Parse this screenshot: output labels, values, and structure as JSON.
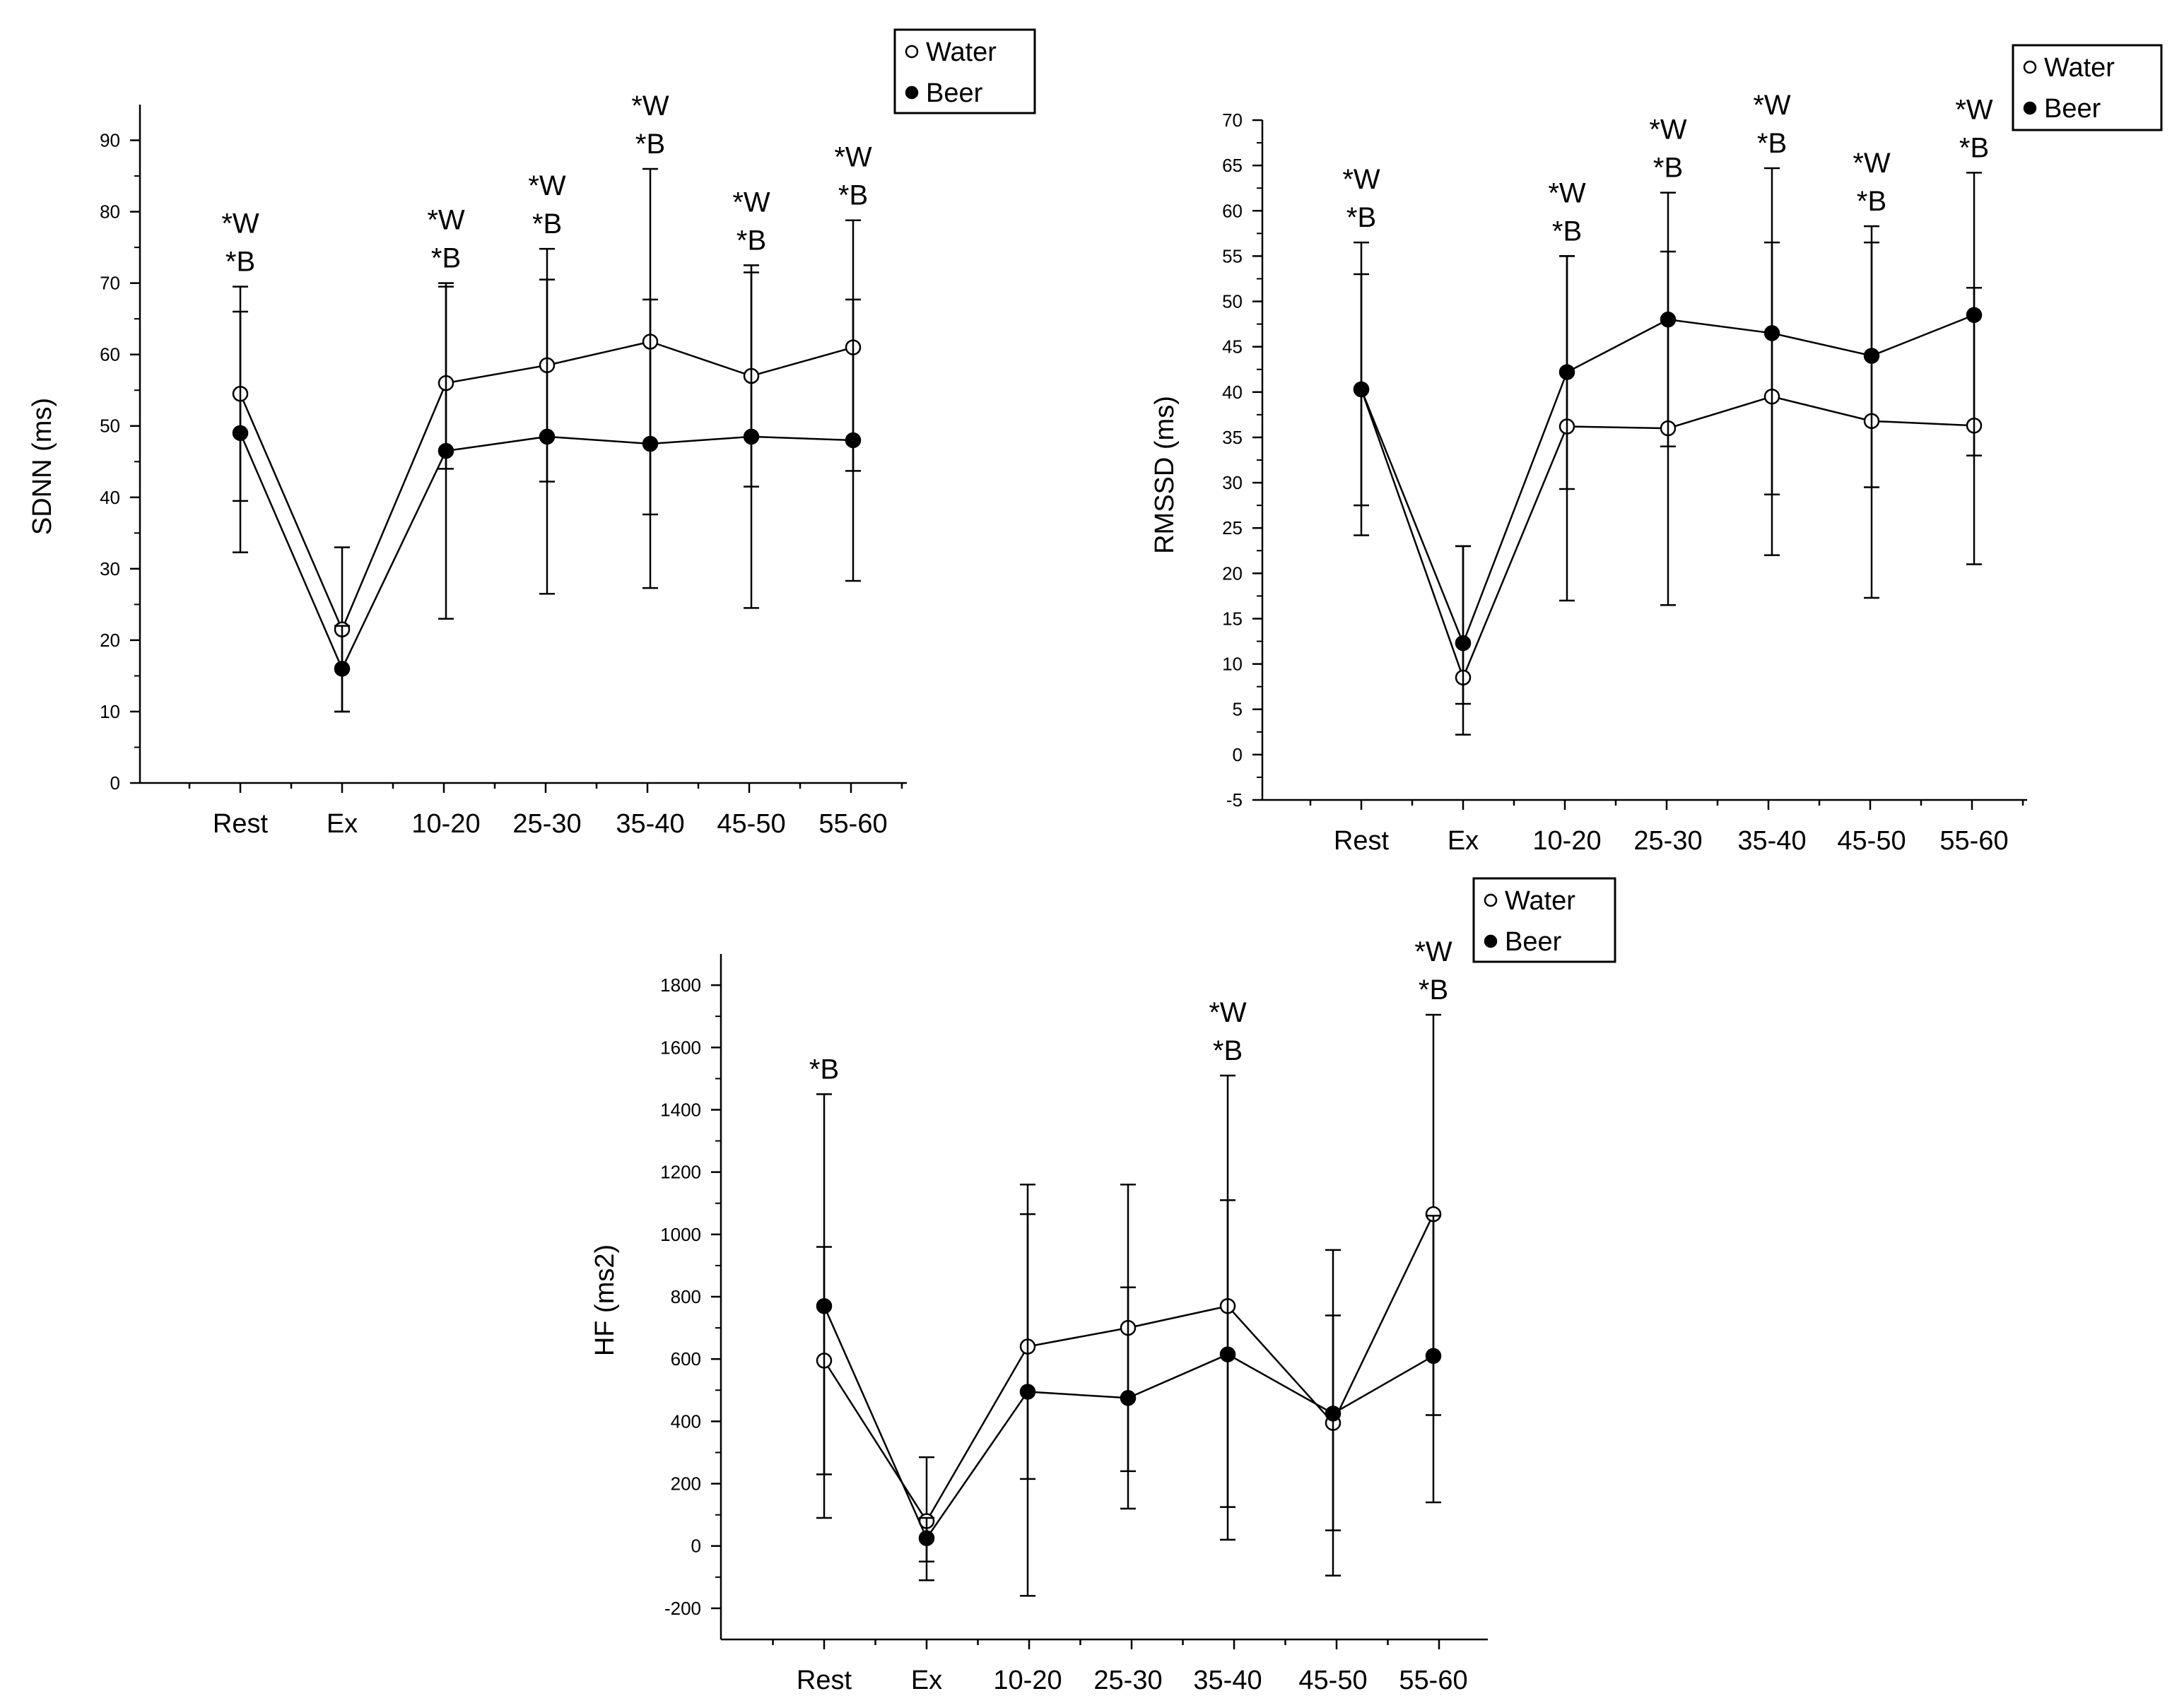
{
  "chart_data": [
    {
      "type": "line",
      "ylabel": "SDNN (ms)",
      "xlabel": "",
      "ylim": [
        0,
        95
      ],
      "yticks": [
        0,
        10,
        20,
        30,
        40,
        50,
        60,
        70,
        80,
        90
      ],
      "categories": [
        "Rest",
        "Ex",
        "10-20",
        "25-30",
        "35-40",
        "45-50",
        "55-60"
      ],
      "series": [
        {
          "name": "Water",
          "marker": "open",
          "values": [
            54.5,
            21.5,
            56,
            58.5,
            61.8,
            57,
            61
          ],
          "upper": [
            69.5,
            33,
            70,
            74.8,
            86,
            72.5,
            78.8
          ],
          "lower": [
            39.5,
            10,
            44,
            42.2,
            37.6,
            41.5,
            43.7
          ]
        },
        {
          "name": "Beer",
          "marker": "filled",
          "values": [
            49,
            16,
            46.5,
            48.5,
            47.5,
            48.5,
            48
          ],
          "upper": [
            66,
            22,
            69.5,
            70.5,
            67.7,
            71.5,
            67.7
          ],
          "lower": [
            32.3,
            10,
            23,
            26.5,
            27.3,
            24.5,
            28.3
          ]
        }
      ],
      "annotations": [
        "*W\n*B",
        "",
        "*W\n*B",
        "*W\n*B",
        "*W\n*B",
        "*W\n*B",
        "*W\n*B"
      ],
      "legend_position": "top-right"
    },
    {
      "type": "line",
      "ylabel": "RMSSD (ms)",
      "xlabel": "",
      "ylim": [
        -5,
        70
      ],
      "yticks": [
        -5,
        0,
        5,
        10,
        15,
        20,
        25,
        30,
        35,
        40,
        45,
        50,
        55,
        60,
        65,
        70
      ],
      "categories": [
        "Rest",
        "Ex",
        "10-20",
        "25-30",
        "35-40",
        "45-50",
        "55-60"
      ],
      "series": [
        {
          "name": "Water",
          "marker": "open",
          "values": [
            40.3,
            8.5,
            36.2,
            36,
            39.5,
            36.8,
            36.3
          ],
          "upper": [
            56.5,
            23,
            55,
            55.5,
            56.5,
            56.5,
            51.5
          ],
          "lower": [
            24.2,
            5.6,
            17,
            16.5,
            22,
            17.3,
            21
          ]
        },
        {
          "name": "Beer",
          "marker": "filled",
          "values": [
            40.3,
            12.3,
            42.2,
            48,
            46.5,
            44,
            48.5
          ],
          "upper": [
            53,
            23,
            55,
            62,
            64.7,
            58.3,
            64.2
          ],
          "lower": [
            27.5,
            2.2,
            29.3,
            34,
            28.7,
            29.5,
            33
          ]
        }
      ],
      "annotations": [
        "*W\n*B",
        "",
        "*W\n*B",
        "*W\n*B",
        "*W\n*B",
        "*W\n*B",
        "*W\n*B"
      ],
      "legend_position": "top-right"
    },
    {
      "type": "line",
      "ylabel": "HF (ms2)",
      "xlabel": "",
      "ylim": [
        -300,
        1900
      ],
      "yticks": [
        -200,
        0,
        200,
        400,
        600,
        800,
        1000,
        1200,
        1400,
        1600,
        1800
      ],
      "categories": [
        "Rest",
        "Ex",
        "10-20",
        "25-30",
        "35-40",
        "45-50",
        "55-60"
      ],
      "series": [
        {
          "name": "Water",
          "marker": "open",
          "values": [
            595,
            80,
            640,
            700,
            770,
            395,
            1065
          ],
          "upper": [
            960,
            285,
            1160,
            1160,
            1510,
            950,
            1705
          ],
          "lower": [
            230,
            -110,
            -160,
            240,
            20,
            -95,
            420
          ]
        },
        {
          "name": "Beer",
          "marker": "filled",
          "values": [
            770,
            25,
            495,
            475,
            615,
            425,
            610
          ],
          "upper": [
            1450,
            90,
            1065,
            830,
            1110,
            740,
            1060
          ],
          "lower": [
            90,
            -50,
            215,
            120,
            125,
            50,
            140
          ]
        }
      ],
      "annotations": [
        "*B",
        "",
        "",
        "",
        "*W\n*B",
        "",
        "*W\n*B"
      ],
      "legend_position": "top-right"
    }
  ]
}
